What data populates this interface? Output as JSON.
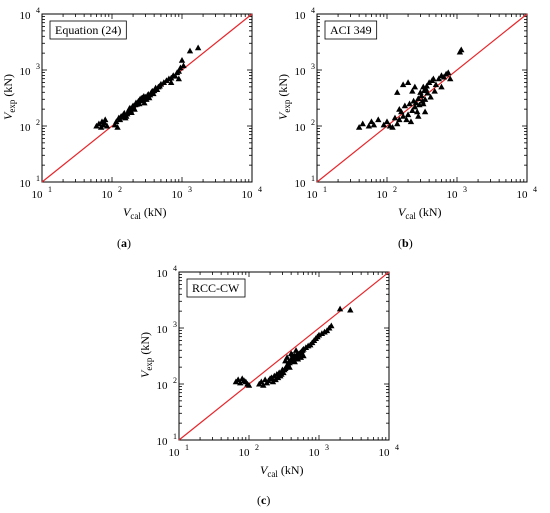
{
  "chart_data": [
    {
      "type": "scatter",
      "panel": "a",
      "label": "Equation (24)",
      "caption": "a",
      "ylabel_main": "V",
      "ylabel_sub": "exp",
      "ylabel_unit": " (kN)",
      "xlabel_main": "V",
      "xlabel_sub": "cal",
      "xlabel_unit": " (kN)",
      "xscale": "log",
      "yscale": "log",
      "xlim": [
        10,
        10000
      ],
      "ylim": [
        10,
        10000
      ],
      "ticks": [
        10,
        100,
        1000,
        10000
      ],
      "reference_line": "y = x",
      "marker": "triangle",
      "points": [
        [
          60,
          100
        ],
        [
          65,
          110
        ],
        [
          70,
          95
        ],
        [
          72,
          120
        ],
        [
          75,
          105
        ],
        [
          78,
          115
        ],
        [
          80,
          130
        ],
        [
          85,
          100
        ],
        [
          110,
          105
        ],
        [
          115,
          120
        ],
        [
          120,
          95
        ],
        [
          125,
          140
        ],
        [
          130,
          130
        ],
        [
          135,
          150
        ],
        [
          140,
          145
        ],
        [
          145,
          160
        ],
        [
          150,
          170
        ],
        [
          155,
          140
        ],
        [
          160,
          150
        ],
        [
          165,
          165
        ],
        [
          170,
          180
        ],
        [
          175,
          200
        ],
        [
          180,
          210
        ],
        [
          185,
          190
        ],
        [
          190,
          175
        ],
        [
          195,
          220
        ],
        [
          200,
          230
        ],
        [
          205,
          210
        ],
        [
          210,
          200
        ],
        [
          215,
          240
        ],
        [
          220,
          260
        ],
        [
          225,
          245
        ],
        [
          230,
          255
        ],
        [
          235,
          270
        ],
        [
          240,
          280
        ],
        [
          245,
          250
        ],
        [
          250,
          300
        ],
        [
          255,
          285
        ],
        [
          260,
          310
        ],
        [
          265,
          290
        ],
        [
          270,
          320
        ],
        [
          280,
          300
        ],
        [
          285,
          340
        ],
        [
          290,
          260
        ],
        [
          300,
          330
        ],
        [
          310,
          300
        ],
        [
          320,
          350
        ],
        [
          330,
          370
        ],
        [
          340,
          320
        ],
        [
          350,
          360
        ],
        [
          360,
          390
        ],
        [
          370,
          410
        ],
        [
          380,
          420
        ],
        [
          390,
          380
        ],
        [
          400,
          430
        ],
        [
          420,
          480
        ],
        [
          440,
          450
        ],
        [
          460,
          500
        ],
        [
          480,
          520
        ],
        [
          500,
          560
        ],
        [
          550,
          600
        ],
        [
          600,
          650
        ],
        [
          650,
          700
        ],
        [
          700,
          720
        ],
        [
          750,
          800
        ],
        [
          800,
          780
        ],
        [
          850,
          900
        ],
        [
          900,
          950
        ],
        [
          950,
          1100
        ],
        [
          1000,
          1500
        ],
        [
          1050,
          1200
        ],
        [
          1300,
          2200
        ],
        [
          1700,
          2500
        ],
        [
          900,
          700
        ],
        [
          700,
          600
        ]
      ]
    },
    {
      "type": "scatter",
      "panel": "b",
      "label": "ACI 349",
      "caption": "b",
      "ylabel_main": "V",
      "ylabel_sub": "exp",
      "ylabel_unit": " (kN)",
      "xlabel_main": "V",
      "xlabel_sub": "cal",
      "xlabel_unit": " (kN)",
      "xscale": "log",
      "yscale": "log",
      "xlim": [
        10,
        10000
      ],
      "ylim": [
        10,
        10000
      ],
      "ticks": [
        10,
        100,
        1000,
        10000
      ],
      "reference_line": "y = x",
      "marker": "triangle",
      "points": [
        [
          40,
          95
        ],
        [
          45,
          110
        ],
        [
          55,
          100
        ],
        [
          60,
          120
        ],
        [
          65,
          105
        ],
        [
          75,
          130
        ],
        [
          90,
          105
        ],
        [
          100,
          120
        ],
        [
          110,
          100
        ],
        [
          120,
          95
        ],
        [
          130,
          140
        ],
        [
          140,
          110
        ],
        [
          150,
          200
        ],
        [
          160,
          180
        ],
        [
          170,
          150
        ],
        [
          180,
          230
        ],
        [
          190,
          130
        ],
        [
          200,
          160
        ],
        [
          210,
          250
        ],
        [
          220,
          120
        ],
        [
          230,
          190
        ],
        [
          240,
          280
        ],
        [
          250,
          220
        ],
        [
          260,
          260
        ],
        [
          270,
          180
        ],
        [
          280,
          310
        ],
        [
          290,
          240
        ],
        [
          300,
          400
        ],
        [
          310,
          350
        ],
        [
          320,
          280
        ],
        [
          330,
          500
        ],
        [
          340,
          430
        ],
        [
          350,
          300
        ],
        [
          360,
          460
        ],
        [
          370,
          520
        ],
        [
          380,
          390
        ],
        [
          400,
          600
        ],
        [
          420,
          330
        ],
        [
          440,
          650
        ],
        [
          460,
          700
        ],
        [
          480,
          420
        ],
        [
          500,
          550
        ],
        [
          550,
          700
        ],
        [
          600,
          800
        ],
        [
          650,
          750
        ],
        [
          700,
          850
        ],
        [
          750,
          900
        ],
        [
          800,
          700
        ],
        [
          250,
          500
        ],
        [
          200,
          600
        ],
        [
          170,
          550
        ],
        [
          140,
          400
        ],
        [
          230,
          420
        ],
        [
          330,
          250
        ],
        [
          280,
          150
        ],
        [
          1100,
          2100
        ],
        [
          1150,
          2300
        ],
        [
          600,
          500
        ],
        [
          350,
          180
        ],
        [
          150,
          130
        ]
      ]
    },
    {
      "type": "scatter",
      "panel": "c",
      "label": "RCC-CW",
      "caption": "c",
      "ylabel_main": "V",
      "ylabel_sub": "exp",
      "ylabel_unit": " (kN)",
      "xlabel_main": "V",
      "xlabel_sub": "cal",
      "xlabel_unit": " (kN)",
      "xscale": "log",
      "yscale": "log",
      "xlim": [
        10,
        10000
      ],
      "ylim": [
        10,
        10000
      ],
      "ticks": [
        10,
        100,
        1000,
        10000
      ],
      "reference_line": "y = x",
      "marker": "triangle",
      "points": [
        [
          65,
          110
        ],
        [
          70,
          120
        ],
        [
          75,
          105
        ],
        [
          80,
          125
        ],
        [
          85,
          115
        ],
        [
          90,
          110
        ],
        [
          95,
          100
        ],
        [
          100,
          95
        ],
        [
          140,
          100
        ],
        [
          150,
          110
        ],
        [
          160,
          95
        ],
        [
          170,
          120
        ],
        [
          180,
          105
        ],
        [
          190,
          115
        ],
        [
          200,
          125
        ],
        [
          210,
          130
        ],
        [
          220,
          110
        ],
        [
          230,
          140
        ],
        [
          240,
          120
        ],
        [
          250,
          150
        ],
        [
          260,
          130
        ],
        [
          270,
          160
        ],
        [
          280,
          140
        ],
        [
          290,
          150
        ],
        [
          300,
          170
        ],
        [
          310,
          160
        ],
        [
          320,
          180
        ],
        [
          330,
          190
        ],
        [
          340,
          200
        ],
        [
          350,
          210
        ],
        [
          360,
          230
        ],
        [
          370,
          250
        ],
        [
          380,
          240
        ],
        [
          390,
          260
        ],
        [
          400,
          270
        ],
        [
          410,
          280
        ],
        [
          420,
          290
        ],
        [
          430,
          300
        ],
        [
          440,
          310
        ],
        [
          450,
          320
        ],
        [
          460,
          300
        ],
        [
          480,
          330
        ],
        [
          500,
          340
        ],
        [
          520,
          350
        ],
        [
          540,
          360
        ],
        [
          560,
          380
        ],
        [
          580,
          400
        ],
        [
          600,
          420
        ],
        [
          650,
          450
        ],
        [
          700,
          480
        ],
        [
          750,
          500
        ],
        [
          800,
          550
        ],
        [
          850,
          600
        ],
        [
          900,
          650
        ],
        [
          950,
          700
        ],
        [
          1000,
          750
        ],
        [
          1100,
          800
        ],
        [
          1200,
          850
        ],
        [
          1300,
          900
        ],
        [
          1400,
          1000
        ],
        [
          1500,
          1100
        ],
        [
          2000,
          2200
        ],
        [
          2800,
          2100
        ],
        [
          350,
          300
        ],
        [
          420,
          330
        ],
        [
          380,
          200
        ],
        [
          450,
          250
        ],
        [
          500,
          280
        ],
        [
          550,
          300
        ],
        [
          600,
          320
        ],
        [
          300,
          180
        ],
        [
          330,
          260
        ],
        [
          400,
          350
        ],
        [
          470,
          400
        ]
      ]
    }
  ]
}
